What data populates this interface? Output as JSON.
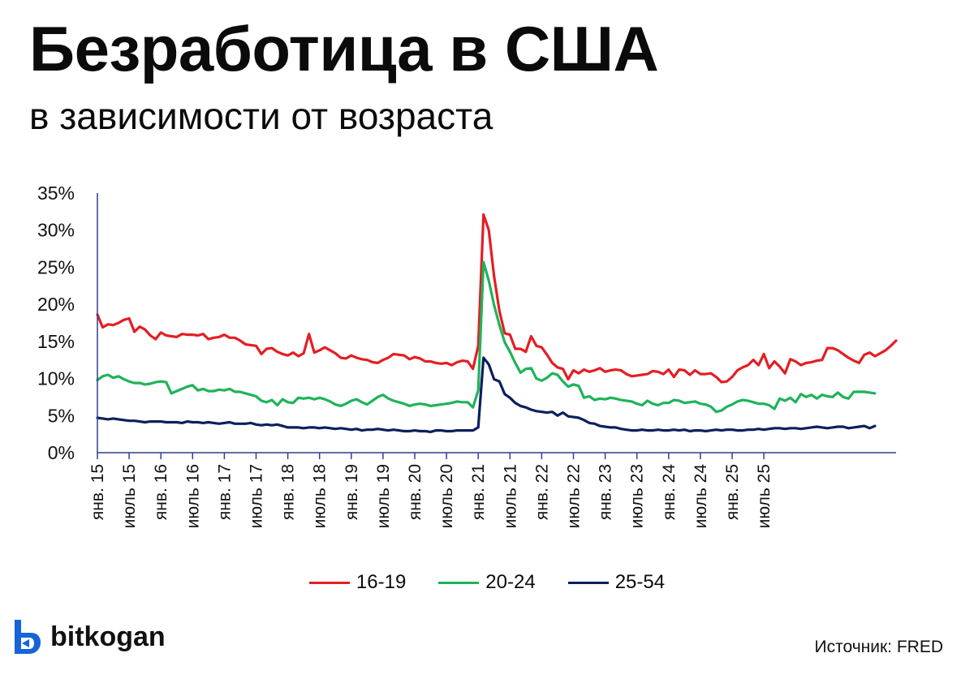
{
  "header": {
    "title": "Безработица в США",
    "subtitle": "в зависимости от возраста"
  },
  "footer": {
    "brand": "bitkogan",
    "source": "Источник: FRED"
  },
  "colors": {
    "brand": "#1565d8",
    "axis": "#2f3e8c"
  },
  "chart_data": {
    "type": "line",
    "x_start": "янв. 15",
    "x_step": "month",
    "ylim": [
      0,
      35
    ],
    "yticks": [
      0,
      5,
      10,
      15,
      20,
      25,
      30,
      35
    ],
    "ytick_labels": [
      "0%",
      "5%",
      "10%",
      "15%",
      "20%",
      "25%",
      "30%",
      "35%"
    ],
    "xtick_labels": [
      "янв. 15",
      "июль 15",
      "янв. 16",
      "июль 16",
      "янв. 17",
      "июль 17",
      "янв. 18",
      "июль 18",
      "янв. 19",
      "июль 19",
      "янв. 20",
      "июль 20",
      "янв. 21",
      "июль 21",
      "янв. 22",
      "июль 22",
      "янв. 23",
      "июль 23",
      "янв. 24",
      "июль 24",
      "янв. 25",
      "июль 25"
    ],
    "legend_position": "bottom",
    "series": [
      {
        "name": "16-19",
        "color": "#e31e24",
        "values": [
          18.6,
          16.9,
          17.3,
          17.2,
          17.5,
          17.9,
          18.1,
          16.3,
          17.0,
          16.6,
          15.8,
          15.3,
          16.2,
          15.8,
          15.7,
          15.6,
          16.0,
          15.9,
          15.9,
          15.8,
          16.0,
          15.3,
          15.5,
          15.6,
          15.9,
          15.5,
          15.5,
          15.1,
          14.6,
          14.5,
          14.4,
          13.3,
          14.0,
          14.1,
          13.6,
          13.3,
          13.1,
          13.5,
          13.0,
          13.4,
          16.0,
          13.5,
          13.8,
          14.2,
          13.8,
          13.4,
          12.8,
          12.7,
          13.1,
          12.8,
          12.6,
          12.5,
          12.2,
          12.1,
          12.5,
          12.8,
          13.3,
          13.2,
          13.1,
          12.6,
          12.9,
          12.7,
          12.3,
          12.3,
          12.1,
          12.0,
          12.1,
          11.8,
          12.2,
          12.4,
          12.3,
          11.3,
          14.4,
          32.1,
          30.0,
          23.8,
          19.1,
          16.1,
          15.9,
          14.0,
          14.0,
          13.6,
          15.7,
          14.4,
          14.2,
          13.2,
          12.1,
          11.5,
          11.3,
          9.9,
          11.1,
          10.7,
          11.2,
          10.9,
          11.1,
          11.4,
          10.9,
          11.1,
          11.2,
          11.1,
          10.6,
          10.3,
          10.4,
          10.5,
          10.6,
          11.0,
          10.9,
          10.6,
          11.2,
          10.2,
          11.2,
          11.1,
          10.5,
          11.1,
          10.6,
          10.6,
          10.7,
          10.2,
          9.5,
          9.6,
          10.2,
          11.1,
          11.5,
          11.8,
          12.5,
          11.8,
          13.3,
          11.4,
          12.3,
          11.6,
          10.7,
          12.6,
          12.3,
          11.8,
          12.1,
          12.2,
          12.4,
          12.5,
          14.1,
          14.1,
          13.8,
          13.3,
          12.8,
          12.4,
          12.1,
          13.2,
          13.5,
          13.0,
          13.4,
          13.8,
          14.4,
          15.1
        ]
      },
      {
        "name": "20-24",
        "color": "#1fb35a",
        "values": [
          9.8,
          10.3,
          10.5,
          10.1,
          10.3,
          9.9,
          9.6,
          9.4,
          9.4,
          9.2,
          9.3,
          9.5,
          9.6,
          9.5,
          8.0,
          8.3,
          8.6,
          8.9,
          9.1,
          8.4,
          8.6,
          8.3,
          8.3,
          8.5,
          8.4,
          8.6,
          8.2,
          8.2,
          8.0,
          7.8,
          7.6,
          7.0,
          6.8,
          7.1,
          6.4,
          7.2,
          6.8,
          6.7,
          7.4,
          7.3,
          7.4,
          7.2,
          7.4,
          7.2,
          6.9,
          6.5,
          6.3,
          6.6,
          7.0,
          7.2,
          6.8,
          6.5,
          7.0,
          7.5,
          7.8,
          7.3,
          7.0,
          6.8,
          6.6,
          6.3,
          6.5,
          6.6,
          6.5,
          6.3,
          6.4,
          6.5,
          6.6,
          6.7,
          6.9,
          6.8,
          6.8,
          6.1,
          8.4,
          25.7,
          23.2,
          19.9,
          17.2,
          14.9,
          13.6,
          12.1,
          10.8,
          11.3,
          11.4,
          10.0,
          9.7,
          10.1,
          10.7,
          10.5,
          9.6,
          8.9,
          9.2,
          9.0,
          7.4,
          7.6,
          7.1,
          7.3,
          7.2,
          7.4,
          7.3,
          7.1,
          7.0,
          6.9,
          6.6,
          6.4,
          7.0,
          6.6,
          6.4,
          6.7,
          6.7,
          7.1,
          7.0,
          6.7,
          6.8,
          6.9,
          6.6,
          6.5,
          6.2,
          5.5,
          5.7,
          6.2,
          6.5,
          6.9,
          7.1,
          7.0,
          6.8,
          6.6,
          6.6,
          6.4,
          5.9,
          7.3,
          7.0,
          7.4,
          6.8,
          7.9,
          7.5,
          7.8,
          7.3,
          7.8,
          7.6,
          7.5,
          8.1,
          7.5,
          7.3,
          8.2,
          8.2,
          8.2,
          8.1,
          8.0
        ]
      },
      {
        "name": "25-54",
        "color": "#0d1f5c",
        "values": [
          4.7,
          4.6,
          4.5,
          4.6,
          4.5,
          4.4,
          4.3,
          4.3,
          4.2,
          4.1,
          4.2,
          4.2,
          4.2,
          4.1,
          4.1,
          4.1,
          4.0,
          4.2,
          4.1,
          4.1,
          4.0,
          4.1,
          4.0,
          3.9,
          4.0,
          4.1,
          3.9,
          3.9,
          3.9,
          4.0,
          3.8,
          3.7,
          3.8,
          3.7,
          3.8,
          3.6,
          3.4,
          3.4,
          3.4,
          3.3,
          3.4,
          3.4,
          3.3,
          3.4,
          3.3,
          3.2,
          3.3,
          3.2,
          3.1,
          3.2,
          3.0,
          3.1,
          3.1,
          3.2,
          3.1,
          3.0,
          3.1,
          3.0,
          2.9,
          2.9,
          3.0,
          2.9,
          2.9,
          2.8,
          3.0,
          3.0,
          2.9,
          2.9,
          3.0,
          3.0,
          3.0,
          3.0,
          3.4,
          12.8,
          11.9,
          9.9,
          9.6,
          7.9,
          7.4,
          6.7,
          6.3,
          6.1,
          5.8,
          5.6,
          5.5,
          5.4,
          5.5,
          5.0,
          5.4,
          4.9,
          4.8,
          4.7,
          4.4,
          4.0,
          3.9,
          3.6,
          3.5,
          3.4,
          3.4,
          3.2,
          3.1,
          3.0,
          3.0,
          3.1,
          3.0,
          3.0,
          3.1,
          3.0,
          3.0,
          3.1,
          3.0,
          3.1,
          2.9,
          3.0,
          3.0,
          2.9,
          3.0,
          3.1,
          3.0,
          3.1,
          3.1,
          3.0,
          3.0,
          3.1,
          3.1,
          3.2,
          3.1,
          3.2,
          3.3,
          3.3,
          3.2,
          3.3,
          3.3,
          3.2,
          3.3,
          3.4,
          3.5,
          3.4,
          3.3,
          3.4,
          3.5,
          3.5,
          3.3,
          3.4,
          3.5,
          3.6,
          3.3,
          3.6
        ]
      }
    ]
  }
}
